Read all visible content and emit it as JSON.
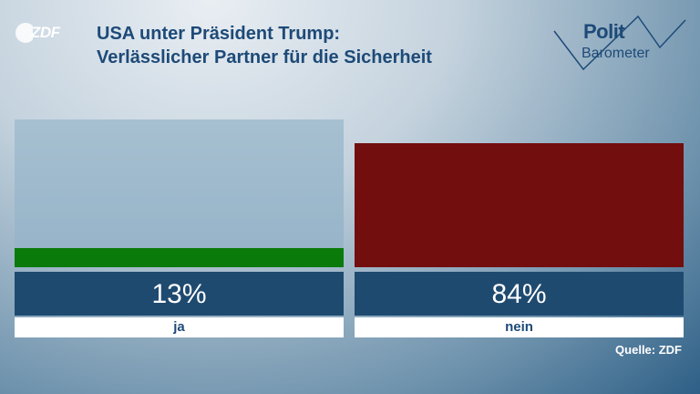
{
  "logo": {
    "text": "ZDF"
  },
  "title": {
    "line1": "USA unter Präsident Trump:",
    "line2": "Verlässlicher Partner für die Sicherheit"
  },
  "branding": {
    "polit": "Polit",
    "barometer": "Barometer"
  },
  "colors": {
    "ja": "#0a7a0a",
    "nein": "#730e0e",
    "value_box": "#1f4a70",
    "title": "#1d4a78"
  },
  "chart_data": {
    "type": "bar",
    "categories": [
      "ja",
      "nein"
    ],
    "values": [
      13,
      84
    ],
    "value_labels": [
      "13%",
      "84%"
    ],
    "ylim": [
      0,
      100
    ],
    "title": "USA unter Präsident Trump: Verlässlicher Partner für die Sicherheit",
    "xlabel": "",
    "ylabel": ""
  },
  "source": "Quelle: ZDF"
}
